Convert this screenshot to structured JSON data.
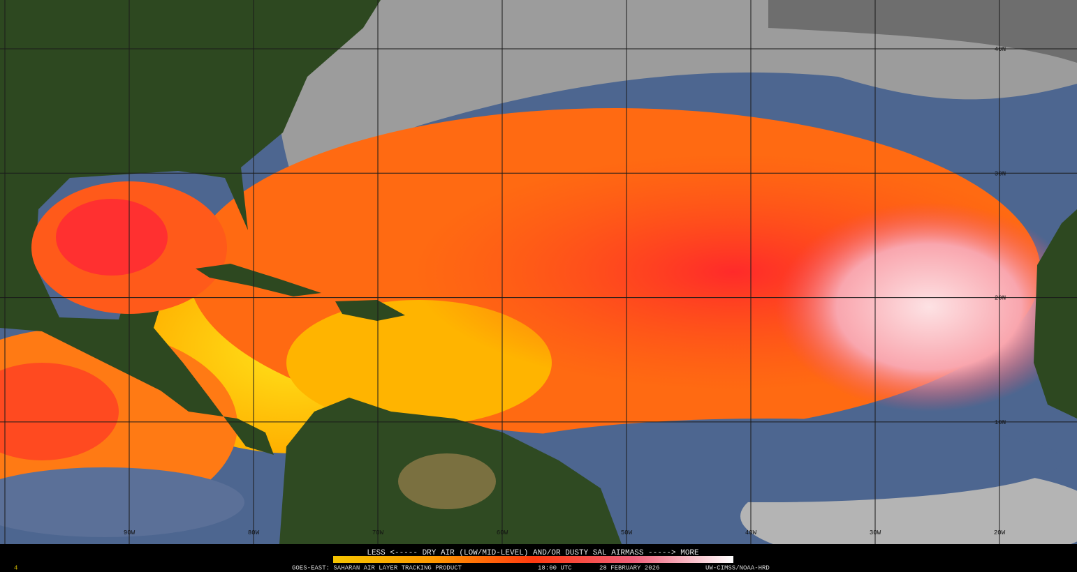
{
  "map": {
    "longitude_labels": [
      "90W",
      "80W",
      "70W",
      "60W",
      "50W",
      "40W",
      "30W",
      "20W"
    ],
    "latitude_labels": [
      "40N",
      "30N",
      "20N",
      "10N"
    ]
  },
  "legend": {
    "caption": "LESS <----- DRY AIR (LOW/MID-LEVEL) AND/OR DUSTY SAL AIRMASS -----> MORE"
  },
  "footer": {
    "frame": "4",
    "product": "GOES-EAST: SAHARAN AIR LAYER TRACKING PRODUCT",
    "time": "18:00 UTC",
    "date": "28 FEBRUARY 2026",
    "credit": "UW-CIMSS/NOAA-HRD"
  }
}
